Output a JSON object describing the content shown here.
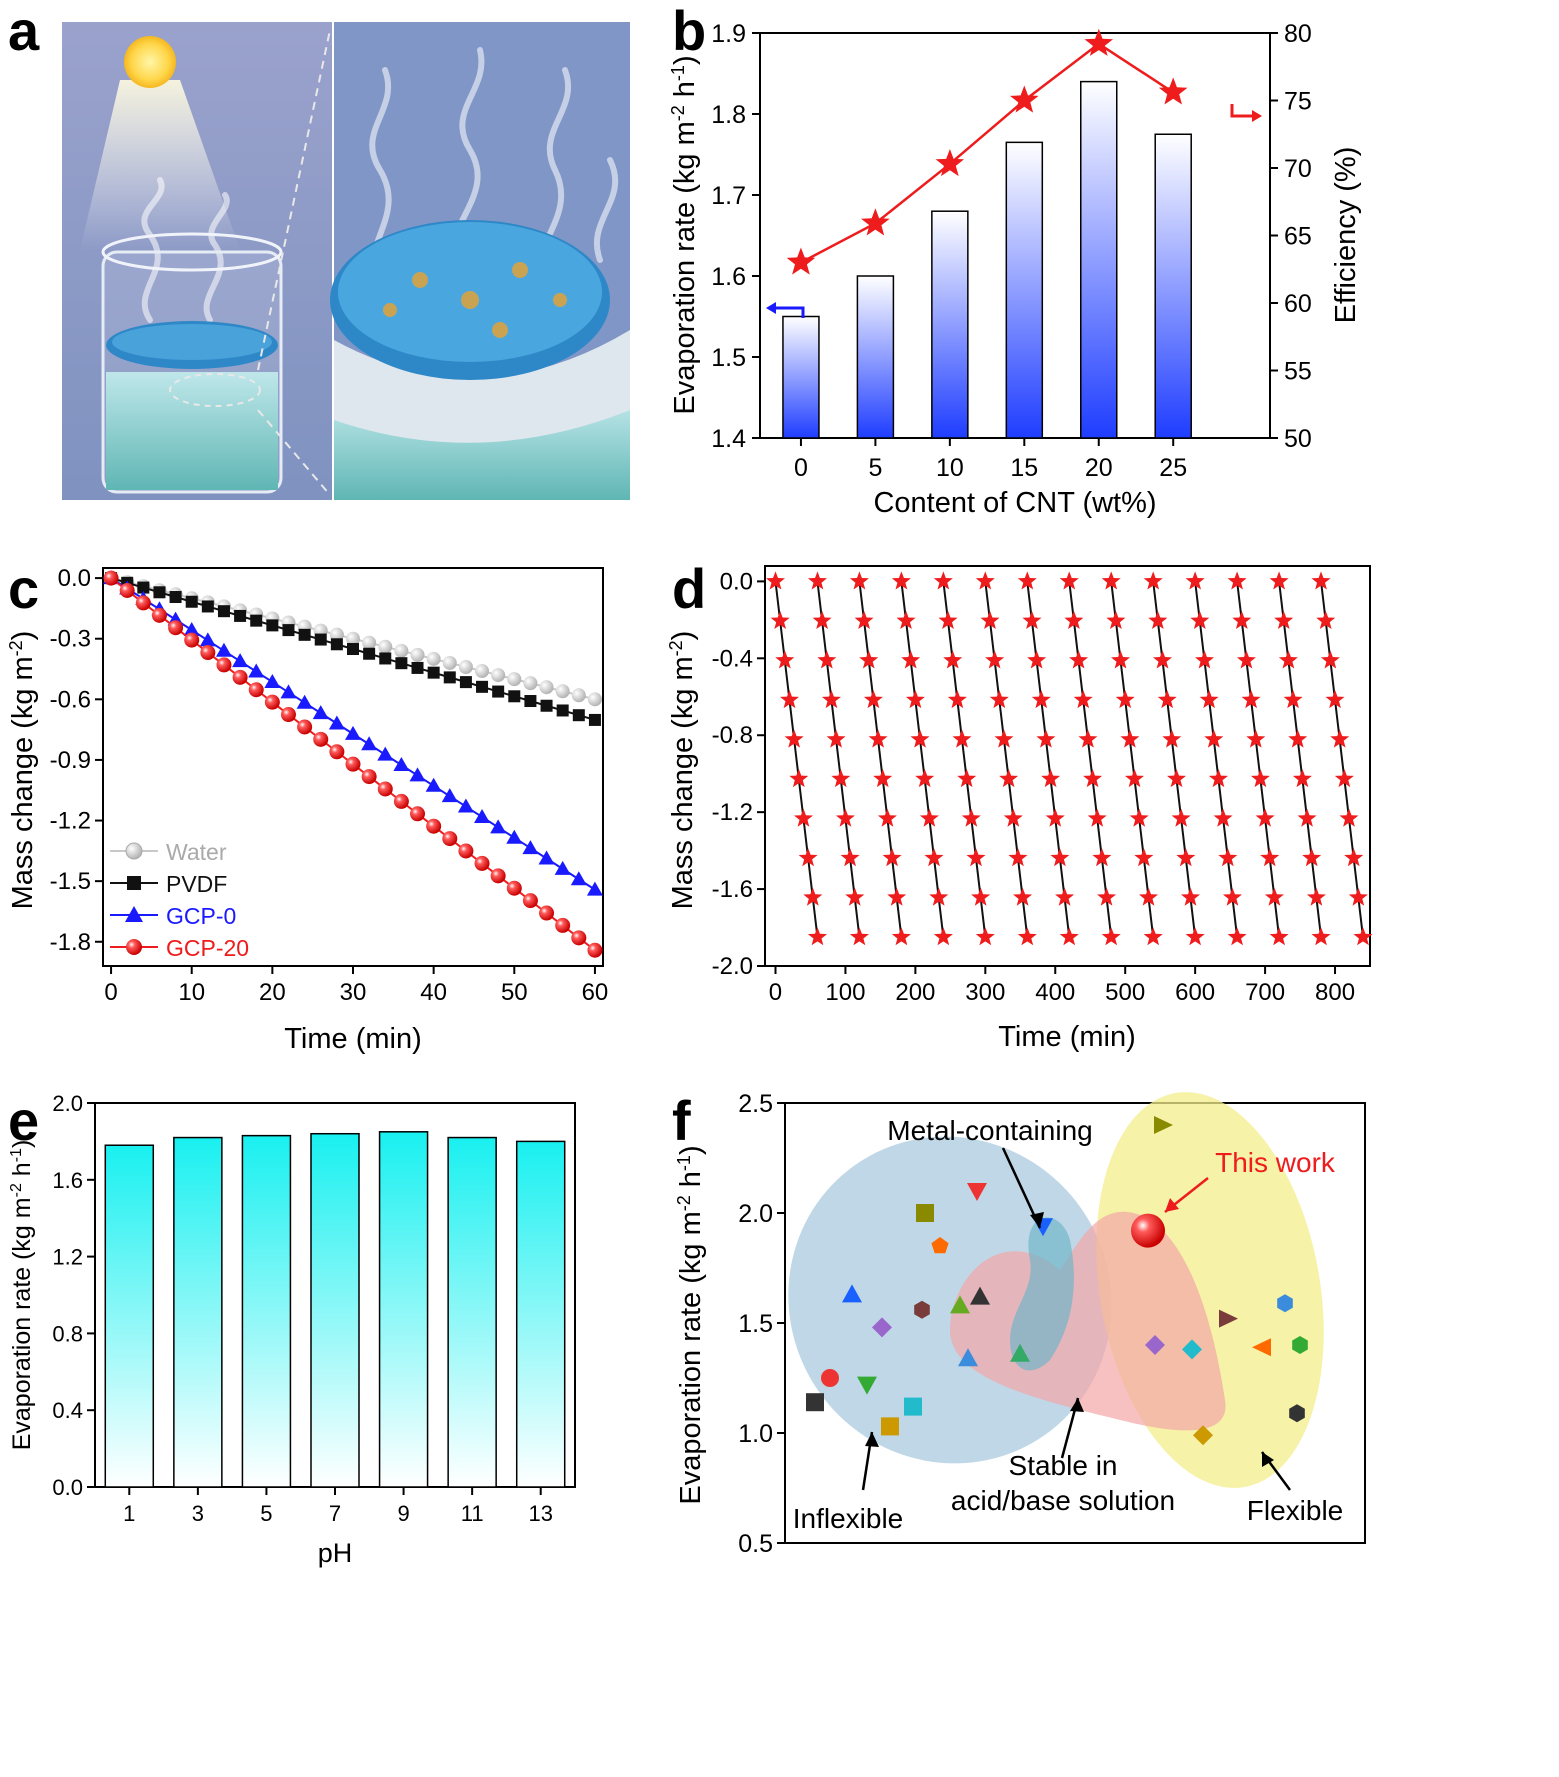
{
  "panel_labels": [
    "a",
    "b",
    "c",
    "d",
    "e",
    "f"
  ],
  "colors": {
    "red": "#ee1c1c",
    "blue": "#1a1aff",
    "cyan": "#19f0f0",
    "black": "#111111",
    "grey": "#c8c8c8",
    "bar_blue": "#1f3dff"
  },
  "chart_data": [
    {
      "id": "b",
      "type": "bar",
      "categories": [
        "0",
        "5",
        "10",
        "15",
        "20",
        "25"
      ],
      "values": [
        1.55,
        1.6,
        1.68,
        1.765,
        1.84,
        1.775
      ],
      "xlabel": "Content of CNT (wt%)",
      "ylabel": "Evaporation rate (kg m-2 h-1)",
      "ylim": [
        1.4,
        1.9
      ],
      "yticks": [
        "1.4",
        "1.5",
        "1.6",
        "1.7",
        "1.8",
        "1.9"
      ],
      "y2label": "Efficiency (%)",
      "y2lim": [
        50,
        80
      ],
      "y2ticks": [
        "50",
        "55",
        "60",
        "65",
        "70",
        "75",
        "80"
      ],
      "efficiency": {
        "type": "line",
        "values": [
          63.0,
          65.9,
          70.3,
          75.0,
          79.2,
          75.6
        ]
      }
    },
    {
      "id": "c",
      "type": "line",
      "xlabel": "Time (min)",
      "ylabel": "Mass change (kg m-2)",
      "xlim": [
        -1,
        61
      ],
      "ylim": [
        -1.92,
        0.05
      ],
      "xticks": [
        "0",
        "10",
        "20",
        "30",
        "40",
        "50",
        "60"
      ],
      "yticks": [
        "0.0",
        "-0.3",
        "-0.6",
        "-0.9",
        "-1.2",
        "-1.5",
        "-1.8"
      ],
      "series": [
        {
          "name": "Water",
          "slope": -0.01,
          "marker": "circle"
        },
        {
          "name": "PVDF",
          "slope": -0.0117,
          "marker": "square"
        },
        {
          "name": "GCP-0",
          "slope": -0.0257,
          "marker": "triangle"
        },
        {
          "name": "GCP-20",
          "slope": -0.0307,
          "marker": "sphere"
        }
      ]
    },
    {
      "id": "d",
      "type": "scatter",
      "xlabel": "Time (min)",
      "ylabel": "Mass change (kg m-2)",
      "xlim": [
        -15,
        850
      ],
      "ylim": [
        -2.0,
        0.08
      ],
      "xticks": [
        "0",
        "100",
        "200",
        "300",
        "400",
        "500",
        "600",
        "700",
        "800"
      ],
      "yticks": [
        "0.0",
        "-0.4",
        "-0.8",
        "-1.2",
        "-1.6",
        "-2.0"
      ],
      "cycles": 14,
      "cycle_minutes": 60,
      "points_per_cycle": 10,
      "cycle_drop": 1.85
    },
    {
      "id": "e",
      "type": "bar",
      "categories": [
        "1",
        "3",
        "5",
        "7",
        "9",
        "11",
        "13"
      ],
      "values": [
        1.78,
        1.82,
        1.83,
        1.84,
        1.85,
        1.82,
        1.8
      ],
      "xlabel": "pH",
      "ylabel": "Evaporation rate (kg m-2 h-1)",
      "ylim": [
        0,
        2.0
      ],
      "yticks": [
        "0.0",
        "0.4",
        "0.8",
        "1.2",
        "1.6",
        "2.0"
      ]
    },
    {
      "id": "f",
      "type": "scatter",
      "ylabel": "Evaporation rate (kg m-2 h-1)",
      "ylim": [
        0.5,
        2.5
      ],
      "yticks": [
        "0.5",
        "1.0",
        "1.5",
        "2.0",
        "2.5"
      ],
      "annotations": [
        "Metal-containing",
        "This work",
        "Stable in",
        "acid/base solution",
        "Inflexible",
        "Flexible"
      ],
      "points": [
        {
          "v": 2.4,
          "shape": "tri-right",
          "color": "#8a8a00"
        },
        {
          "v": 2.1,
          "shape": "tri-down",
          "color": "#ee3333"
        },
        {
          "v": 2.0,
          "shape": "square",
          "color": "#8a8a00"
        },
        {
          "v": 1.94,
          "shape": "tri-down",
          "color": "#1a60ff"
        },
        {
          "v": 1.92,
          "shape": "sphere",
          "color": "#ee1c1c"
        },
        {
          "v": 1.85,
          "shape": "pentagon",
          "color": "#ff6a00"
        },
        {
          "v": 1.63,
          "shape": "triangle",
          "color": "#1a60ff"
        },
        {
          "v": 1.62,
          "shape": "triangle",
          "color": "#333333"
        },
        {
          "v": 1.59,
          "shape": "hexagon",
          "color": "#3b8cdc"
        },
        {
          "v": 1.58,
          "shape": "triangle",
          "color": "#66aa22"
        },
        {
          "v": 1.56,
          "shape": "hexagon",
          "color": "#7a3b3b"
        },
        {
          "v": 1.52,
          "shape": "tri-right",
          "color": "#7a3b3b"
        },
        {
          "v": 1.48,
          "shape": "diamond",
          "color": "#9966cc"
        },
        {
          "v": 1.4,
          "shape": "diamond",
          "color": "#9966cc"
        },
        {
          "v": 1.4,
          "shape": "hexagon",
          "color": "#33aa33"
        },
        {
          "v": 1.39,
          "shape": "tri-left",
          "color": "#ff6a00"
        },
        {
          "v": 1.38,
          "shape": "diamond",
          "color": "#22bbcc"
        },
        {
          "v": 1.36,
          "shape": "triangle",
          "color": "#33aa66"
        },
        {
          "v": 1.34,
          "shape": "triangle",
          "color": "#3b8cdc"
        },
        {
          "v": 1.25,
          "shape": "circle",
          "color": "#ee3333"
        },
        {
          "v": 1.22,
          "shape": "tri-down",
          "color": "#33aa33"
        },
        {
          "v": 1.14,
          "shape": "square",
          "color": "#333333"
        },
        {
          "v": 1.12,
          "shape": "square",
          "color": "#22bbcc"
        },
        {
          "v": 1.09,
          "shape": "hexagon",
          "color": "#333333"
        },
        {
          "v": 1.03,
          "shape": "square",
          "color": "#cc9900"
        },
        {
          "v": 0.99,
          "shape": "diamond",
          "color": "#cc9900"
        }
      ]
    }
  ]
}
